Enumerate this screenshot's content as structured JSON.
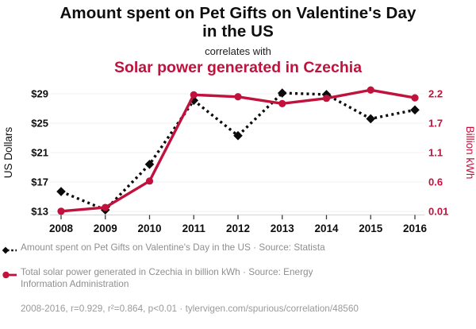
{
  "header": {
    "title": "Amount spent on Pet Gifts on Valentine's Day in the US",
    "connector": "correlates with",
    "subtitle": "Solar power generated in Czechia"
  },
  "chart_data": {
    "type": "line",
    "x": [
      2008,
      2009,
      2010,
      2011,
      2012,
      2013,
      2014,
      2015,
      2016
    ],
    "series": [
      {
        "name": "pet-gifts",
        "label": "Amount spent on Pet Gifts on Valentine's Day in the US · Source: Statista",
        "axis": "left",
        "style": "dashed",
        "marker": "diamond",
        "color": "#0b0b0b",
        "values": [
          15.7,
          13.2,
          19.4,
          28.1,
          23.3,
          29.1,
          28.9,
          25.6,
          26.8
        ]
      },
      {
        "name": "solar-czechia",
        "label": "Total solar power generated in Czechia in billion kWh · Source: Energy Information Administration",
        "axis": "right",
        "style": "solid",
        "marker": "circle",
        "color": "#c0123c",
        "values": [
          0.013,
          0.089,
          0.616,
          2.182,
          2.149,
          2.033,
          2.123,
          2.264,
          2.131
        ]
      }
    ],
    "left_axis": {
      "label": "US Dollars",
      "tick_labels": [
        "$13",
        "$17",
        "$21",
        "$25",
        "$29"
      ],
      "tick_values": [
        13,
        17,
        21,
        25,
        29
      ]
    },
    "right_axis": {
      "label": "Billion kWh",
      "tick_labels": [
        "0.01",
        "0.6",
        "1.1",
        "1.7",
        "2.2"
      ],
      "tick_values": [
        0.01,
        0.6,
        1.1,
        1.7,
        2.2
      ]
    },
    "grid": true,
    "legend_position": "bottom-left"
  },
  "footer": {
    "stats": "2008-2016, r=0.929, r²=0.864, p<0.01 · tylervigen.com/spurious/correlation/48560"
  },
  "colors": {
    "accent_red": "#c0123c",
    "text_black": "#0e0e0e",
    "legend_gray": "#8f8f8f",
    "gridline": "#f0f0f0",
    "axis_line": "#d4d4d4",
    "tick_mark": "#3c3c3c"
  }
}
